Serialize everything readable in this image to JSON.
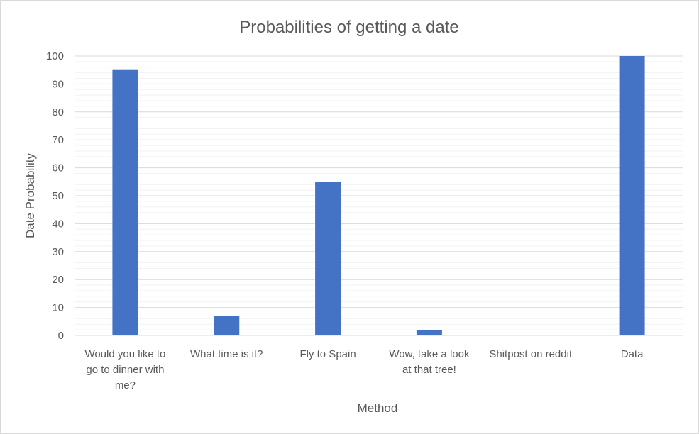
{
  "chart_data": {
    "type": "bar",
    "title": "Probabilities of getting a date",
    "xlabel": "Method",
    "ylabel": "Date Probability",
    "ylim": [
      0,
      100
    ],
    "yticks": [
      0,
      10,
      20,
      30,
      40,
      50,
      60,
      70,
      80,
      90,
      100
    ],
    "categories": [
      [
        "Would you like to",
        "go to dinner with",
        "me?"
      ],
      [
        "What time is it?"
      ],
      [
        "Fly to Spain"
      ],
      [
        "Wow, take a look",
        "at that tree!"
      ],
      [
        "Shitpost on reddit"
      ],
      [
        "Data"
      ]
    ],
    "values": [
      95,
      7,
      55,
      2,
      0,
      100
    ],
    "grid": true,
    "legend": "none",
    "colors": {
      "bar": "#4472c4",
      "major_grid": "#d9d9d9",
      "minor_grid": "#f2f2f2",
      "text": "#595959"
    }
  }
}
